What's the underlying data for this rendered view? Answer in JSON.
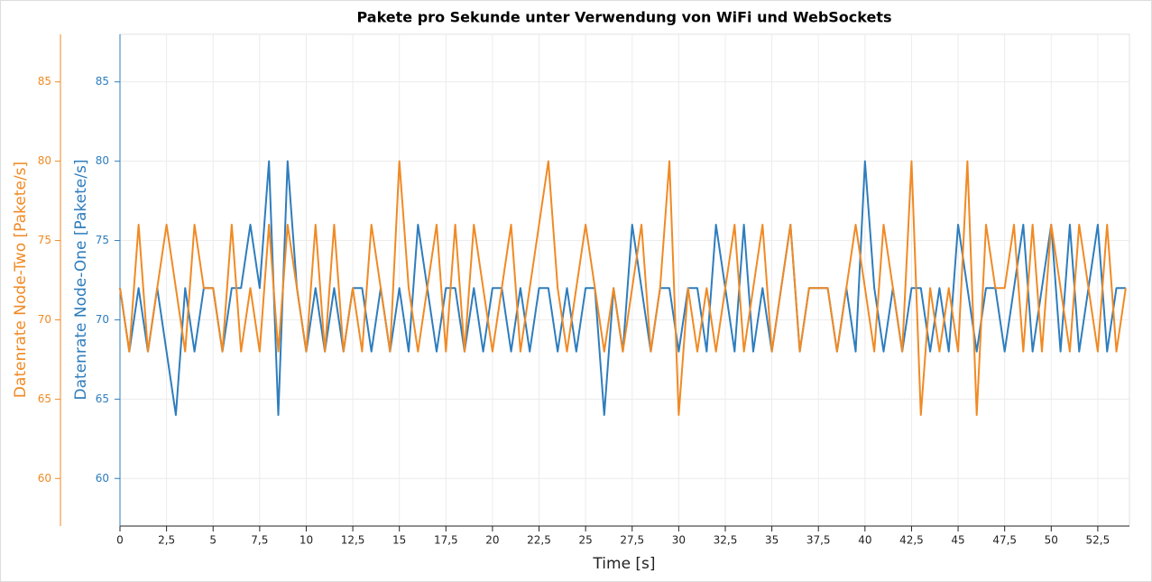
{
  "chart_data": {
    "type": "line",
    "title": "Pakete pro Sekunde unter Verwendung von WiFi und WebSockets",
    "xlabel": "Time [s]",
    "ylabel": "Datenrate Node-One [Pakete/s]",
    "y2label": "Datenrate Node-Two [Pakete/s]",
    "x": [
      0,
      0.5,
      1,
      1.5,
      2,
      2.5,
      3,
      3.5,
      4,
      4.5,
      5,
      5.5,
      6,
      6.5,
      7,
      7.5,
      8,
      8.5,
      9,
      9.5,
      10,
      10.5,
      11,
      11.5,
      12,
      12.5,
      13,
      13.5,
      14,
      14.5,
      15,
      15.5,
      16,
      16.5,
      17,
      17.5,
      18,
      18.5,
      19,
      19.5,
      20,
      20.5,
      21,
      21.5,
      22,
      22.5,
      23,
      23.5,
      24,
      24.5,
      25,
      25.5,
      26,
      26.5,
      27,
      27.5,
      28,
      28.5,
      29,
      29.5,
      30,
      30.5,
      31,
      31.5,
      32,
      32.5,
      33,
      33.5,
      34,
      34.5,
      35,
      35.5,
      36,
      36.5,
      37,
      37.5,
      38,
      38.5,
      39,
      39.5,
      40,
      40.5,
      41,
      41.5,
      42,
      42.5,
      43,
      43.5,
      44,
      44.5,
      45,
      45.5,
      46,
      46.5,
      47,
      47.5,
      48,
      48.5,
      49,
      49.5,
      50,
      50.5,
      51,
      51.5,
      52,
      52.5,
      53,
      53.5,
      54
    ],
    "series": [
      {
        "color": "#2e7dbd",
        "axis": "y",
        "values": [
          72,
          68,
          72,
          68,
          72,
          68,
          64,
          72,
          68,
          72,
          72,
          68,
          72,
          72,
          76,
          72,
          80,
          64,
          80,
          72,
          68,
          72,
          68,
          72,
          68,
          72,
          72,
          68,
          72,
          68,
          72,
          68,
          76,
          72,
          68,
          72,
          72,
          68,
          72,
          68,
          72,
          72,
          68,
          72,
          68,
          72,
          72,
          68,
          72,
          68,
          72,
          72,
          64,
          72,
          68,
          76,
          72,
          68,
          72,
          72,
          68,
          72,
          72,
          68,
          76,
          72,
          68,
          76,
          68,
          72,
          68,
          72,
          76,
          68,
          72,
          72,
          72,
          68,
          72,
          68,
          80,
          72,
          68,
          72,
          68,
          72,
          72,
          68,
          72,
          68,
          76,
          72,
          68,
          72,
          72,
          68,
          72,
          76,
          68,
          72,
          76,
          68,
          76,
          68,
          72,
          76,
          68,
          72,
          72
        ]
      },
      {
        "color": "#f08a24",
        "axis": "y2",
        "values": [
          72,
          68,
          76,
          68,
          72,
          76,
          72,
          68,
          76,
          72,
          72,
          68,
          76,
          68,
          72,
          68,
          76,
          68,
          76,
          72,
          68,
          76,
          68,
          76,
          68,
          72,
          68,
          76,
          72,
          68,
          80,
          72,
          68,
          72,
          76,
          68,
          76,
          68,
          76,
          72,
          68,
          72,
          76,
          68,
          72,
          76,
          80,
          72,
          68,
          72,
          76,
          72,
          68,
          72,
          68,
          72,
          76,
          68,
          72,
          80,
          64,
          72,
          68,
          72,
          68,
          72,
          76,
          68,
          72,
          76,
          68,
          72,
          76,
          68,
          72,
          72,
          72,
          68,
          72,
          76,
          72,
          68,
          76,
          72,
          68,
          80,
          64,
          72,
          68,
          72,
          68,
          80,
          64,
          76,
          72,
          72,
          76,
          68,
          76,
          68,
          76,
          72,
          68,
          76,
          72,
          68,
          76,
          68,
          72
        ]
      }
    ],
    "xlim": [
      0,
      54.2
    ],
    "xticks": [
      0,
      {
        "value": 2.5,
        "label": "2,5"
      },
      5,
      {
        "value": 7.5,
        "label": "7,5"
      },
      10,
      {
        "value": 12.5,
        "label": "12,5"
      },
      15,
      {
        "value": 17.5,
        "label": "17,5"
      },
      20,
      {
        "value": 22.5,
        "label": "22,5"
      },
      25,
      {
        "value": 27.5,
        "label": "27,5"
      },
      30,
      {
        "value": 32.5,
        "label": "32,5"
      },
      35,
      {
        "value": 37.5,
        "label": "37,5"
      },
      40,
      {
        "value": 42.5,
        "label": "42,5"
      },
      45,
      {
        "value": 47.5,
        "label": "47,5"
      },
      50,
      {
        "value": 52.5,
        "label": "52,5"
      }
    ],
    "ylim": [
      57,
      88
    ],
    "yticks": [
      60,
      65,
      70,
      75,
      80,
      85
    ],
    "y2lim": [
      57,
      88
    ],
    "y2ticks": [
      60,
      65,
      70,
      75,
      80,
      85
    ],
    "grid": true
  }
}
